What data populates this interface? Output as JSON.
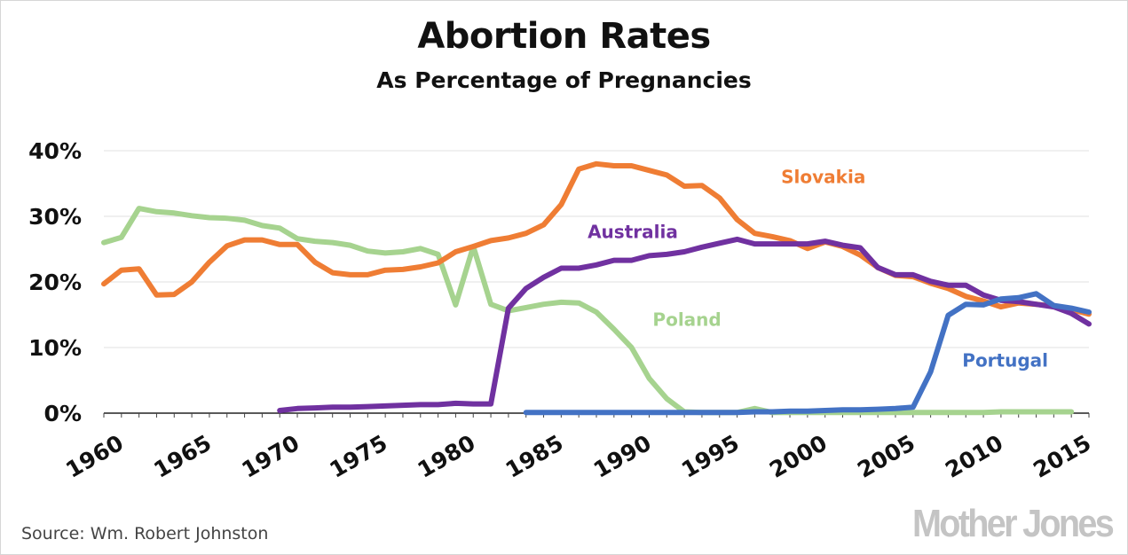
{
  "header": {
    "title": "Abortion Rates",
    "subtitle": "As Percentage of Pregnancies"
  },
  "footer": {
    "source": "Source: Wm. Robert Johnston",
    "logo": "Mother Jones"
  },
  "chart_data": {
    "type": "line",
    "title": "Abortion Rates",
    "subtitle": "As Percentage of Pregnancies",
    "xlabel": "",
    "ylabel": "",
    "xlim": [
      1960,
      2016
    ],
    "ylim": [
      0,
      40
    ],
    "x_ticks": [
      "1960",
      "1965",
      "1970",
      "1975",
      "1980",
      "1985",
      "1990",
      "1995",
      "2000",
      "2005",
      "2010",
      "2015"
    ],
    "y_ticks": [
      "0%",
      "10%",
      "20%",
      "30%",
      "40%"
    ],
    "grid": true,
    "legend": "direct labels",
    "series": [
      {
        "name": "Poland",
        "color": "#a6d38f",
        "x": [
          1960,
          1961,
          1962,
          1963,
          1964,
          1965,
          1966,
          1967,
          1968,
          1969,
          1970,
          1971,
          1972,
          1973,
          1974,
          1975,
          1976,
          1977,
          1978,
          1979,
          1980,
          1981,
          1982,
          1983,
          1984,
          1985,
          1986,
          1987,
          1988,
          1989,
          1990,
          1991,
          1992,
          1993,
          1994,
          1995,
          1996,
          1997,
          1998,
          1999,
          2000,
          2001,
          2002,
          2003,
          2004,
          2005,
          2006,
          2007,
          2008,
          2009,
          2010,
          2011,
          2012,
          2013,
          2014,
          2015
        ],
        "values": [
          26.0,
          26.8,
          31.2,
          30.7,
          30.5,
          30.1,
          29.8,
          29.7,
          29.4,
          28.6,
          28.2,
          26.6,
          26.2,
          26.0,
          25.6,
          24.7,
          24.4,
          24.6,
          25.1,
          24.2,
          16.5,
          25.4,
          16.6,
          15.6,
          16.1,
          16.6,
          16.9,
          16.8,
          15.4,
          12.8,
          10.0,
          5.3,
          2.2,
          0.2,
          0.1,
          0.1,
          0.1,
          0.7,
          0.1,
          0.1,
          0.1,
          0.1,
          0.1,
          0.1,
          0.1,
          0.1,
          0.1,
          0.1,
          0.1,
          0.1,
          0.1,
          0.2,
          0.2,
          0.2,
          0.2,
          0.2
        ]
      },
      {
        "name": "Slovakia",
        "color": "#ef7d34",
        "x": [
          1960,
          1961,
          1962,
          1963,
          1964,
          1965,
          1966,
          1967,
          1968,
          1969,
          1970,
          1971,
          1972,
          1973,
          1974,
          1975,
          1976,
          1977,
          1978,
          1979,
          1980,
          1981,
          1982,
          1983,
          1984,
          1985,
          1986,
          1987,
          1988,
          1989,
          1990,
          1991,
          1992,
          1993,
          1994,
          1995,
          1996,
          1997,
          1998,
          1999,
          2000,
          2001,
          2002,
          2003,
          2004,
          2005,
          2006,
          2007,
          2008,
          2009,
          2010,
          2011,
          2012,
          2013,
          2014,
          2015,
          2016
        ],
        "values": [
          19.7,
          21.8,
          22.0,
          18.0,
          18.1,
          20.0,
          23.0,
          25.5,
          26.4,
          26.4,
          25.7,
          25.7,
          23.0,
          21.4,
          21.1,
          21.1,
          21.8,
          21.9,
          22.3,
          22.9,
          24.6,
          25.4,
          26.3,
          26.7,
          27.4,
          28.7,
          31.8,
          37.2,
          38.0,
          37.7,
          37.7,
          37.0,
          36.3,
          34.6,
          34.7,
          32.8,
          29.5,
          27.4,
          26.9,
          26.3,
          25.1,
          26.1,
          25.4,
          24.1,
          22.2,
          21.0,
          20.8,
          19.8,
          19.0,
          17.8,
          17.1,
          16.2,
          16.8,
          16.6,
          16.3,
          15.8,
          15.1
        ]
      },
      {
        "name": "Australia",
        "color": "#7031a0",
        "x": [
          1970,
          1971,
          1972,
          1973,
          1974,
          1975,
          1976,
          1977,
          1978,
          1979,
          1980,
          1981,
          1982,
          1983,
          1984,
          1985,
          1986,
          1987,
          1988,
          1989,
          1990,
          1991,
          1992,
          1993,
          1994,
          1995,
          1996,
          1997,
          1998,
          1999,
          2000,
          2001,
          2002,
          2003,
          2004,
          2005,
          2006,
          2007,
          2008,
          2009,
          2010,
          2011,
          2012,
          2013,
          2014,
          2015,
          2016
        ],
        "values": [
          0.4,
          0.7,
          0.8,
          0.9,
          0.9,
          1.0,
          1.1,
          1.2,
          1.3,
          1.3,
          1.5,
          1.4,
          1.4,
          16.0,
          19.0,
          20.7,
          22.1,
          22.1,
          22.6,
          23.3,
          23.3,
          24.0,
          24.2,
          24.6,
          25.3,
          25.9,
          26.5,
          25.8,
          25.8,
          25.8,
          25.8,
          26.2,
          25.6,
          25.2,
          22.2,
          21.1,
          21.1,
          20.1,
          19.5,
          19.5,
          18.0,
          17.2,
          17.0,
          16.6,
          16.2,
          15.2,
          13.6
        ]
      },
      {
        "name": "Portugal",
        "color": "#4372c4",
        "x": [
          1984,
          1985,
          1986,
          1987,
          1988,
          1989,
          1990,
          1991,
          1992,
          1993,
          1994,
          1995,
          1996,
          1997,
          1998,
          1999,
          2000,
          2001,
          2002,
          2003,
          2004,
          2005,
          2006,
          2007,
          2008,
          2009,
          2010,
          2011,
          2012,
          2013,
          2014,
          2015,
          2016
        ],
        "values": [
          0.1,
          0.1,
          0.1,
          0.1,
          0.1,
          0.1,
          0.1,
          0.1,
          0.1,
          0.1,
          0.1,
          0.1,
          0.1,
          0.2,
          0.2,
          0.3,
          0.3,
          0.4,
          0.5,
          0.5,
          0.6,
          0.7,
          0.9,
          6.3,
          14.9,
          16.6,
          16.5,
          17.4,
          17.6,
          18.2,
          16.4,
          16.0,
          15.4
        ]
      }
    ],
    "annotations": [
      {
        "text": "Slovakia",
        "x": 1998.5,
        "y": 35.1,
        "color": "#ef7d34"
      },
      {
        "text": "Australia",
        "x": 1987.5,
        "y": 26.7,
        "color": "#7031a0"
      },
      {
        "text": "Poland",
        "x": 1991.2,
        "y": 13.3,
        "color": "#a6d38f"
      },
      {
        "text": "Portugal",
        "x": 2008.8,
        "y": 7.1,
        "color": "#4372c4"
      }
    ]
  }
}
